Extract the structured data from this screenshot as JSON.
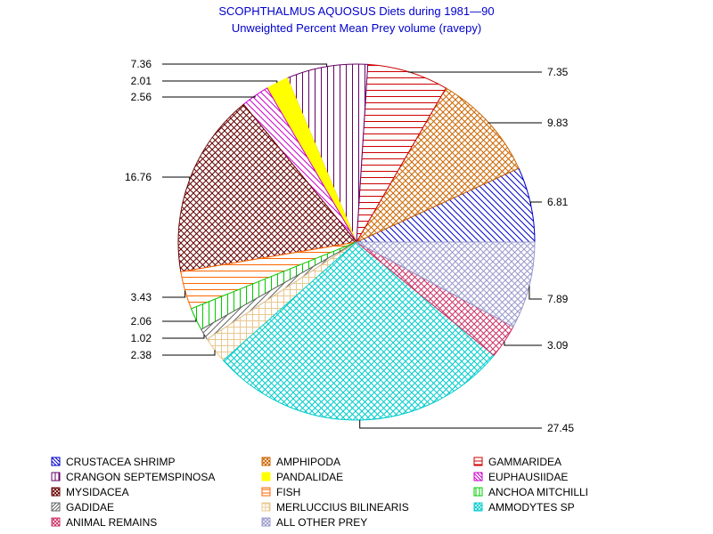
{
  "chart_data": {
    "type": "pie",
    "title": "SCOPHTHALMUS AQUOSUS Diets during 1981—90",
    "subtitle": "Unweighted Percent Mean Prey volume (ravepy)",
    "slices": [
      {
        "name": "CRUSTACEA SHRIMP",
        "value": 6.81,
        "label": "6.81",
        "color": "#0000cc",
        "pattern": "diag-down"
      },
      {
        "name": "AMPHIPODA",
        "value": 9.83,
        "label": "9.83",
        "color": "#cc6600",
        "pattern": "crosshatch"
      },
      {
        "name": "GAMMARIDEA",
        "value": 7.35,
        "label": "7.35",
        "color": "#cc0000",
        "pattern": "horizontal"
      },
      {
        "name": "CRANGON SEPTEMSPINOSA",
        "value": 7.36,
        "label": "7.36",
        "color": "#660066",
        "pattern": "vertical"
      },
      {
        "name": "PANDALIDAE",
        "value": 2.01,
        "label": "2.01",
        "color": "#ffff00",
        "pattern": "solid"
      },
      {
        "name": "EUPHAUSIIDAE",
        "value": 2.56,
        "label": "2.56",
        "color": "#cc00cc",
        "pattern": "diag-down"
      },
      {
        "name": "MYSIDACEA",
        "value": 16.76,
        "label": "16.76",
        "color": "#660000",
        "pattern": "crosshatch"
      },
      {
        "name": "FISH",
        "value": 3.43,
        "label": "3.43",
        "color": "#ff6600",
        "pattern": "horizontal"
      },
      {
        "name": "ANCHOA MITCHILLI",
        "value": 2.06,
        "label": "2.06",
        "color": "#00cc00",
        "pattern": "vertical"
      },
      {
        "name": "GADIDAE",
        "value": 1.02,
        "label": "1.02",
        "color": "#666666",
        "pattern": "diag-up"
      },
      {
        "name": "MERLUCCIUS BILINEARIS",
        "value": 2.38,
        "label": "2.38",
        "color": "#e8c890",
        "pattern": "grid"
      },
      {
        "name": "AMMODYTES SP",
        "value": 27.45,
        "label": "27.45",
        "color": "#00cccc",
        "pattern": "crosshatch"
      },
      {
        "name": "ANIMAL REMAINS",
        "value": 3.09,
        "label": "3.09",
        "color": "#cc3366",
        "pattern": "crosshatch"
      },
      {
        "name": "ALL OTHER PREY",
        "value": 7.89,
        "label": "7.89",
        "color": "#9999cc",
        "pattern": "crosshatch"
      }
    ],
    "legend_order": [
      "CRUSTACEA SHRIMP",
      "AMPHIPODA",
      "GAMMARIDEA",
      "CRANGON SEPTEMSPINOSA",
      "PANDALIDAE",
      "EUPHAUSIIDAE",
      "MYSIDACEA",
      "FISH",
      "ANCHOA MITCHILLI",
      "GADIDAE",
      "MERLUCCIUS BILINEARIS",
      "AMMODYTES SP",
      "ANIMAL REMAINS",
      "ALL OTHER PREY"
    ],
    "legend_placement": "bottom"
  }
}
